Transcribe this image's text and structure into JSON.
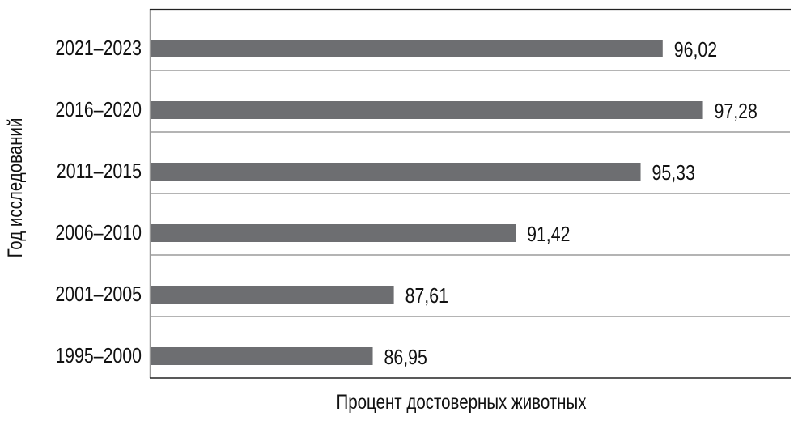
{
  "chart_data": {
    "type": "bar",
    "orientation": "horizontal",
    "title": "",
    "xlabel": "Процент достоверных животных",
    "ylabel": "Год исследований",
    "categories": [
      "2021–2023",
      "2016–2020",
      "2011–2015",
      "2006–2010",
      "2001–2005",
      "1995–2000"
    ],
    "values": [
      96.02,
      97.28,
      95.33,
      91.42,
      87.61,
      86.95
    ],
    "value_labels": [
      "96,02",
      "97,28",
      "95,33",
      "91,42",
      "87,61",
      "86,95"
    ],
    "xlim": [
      80,
      100
    ],
    "grid": "horizontal separators between categories",
    "legend": "none",
    "bar_color": "#6d6e71"
  }
}
